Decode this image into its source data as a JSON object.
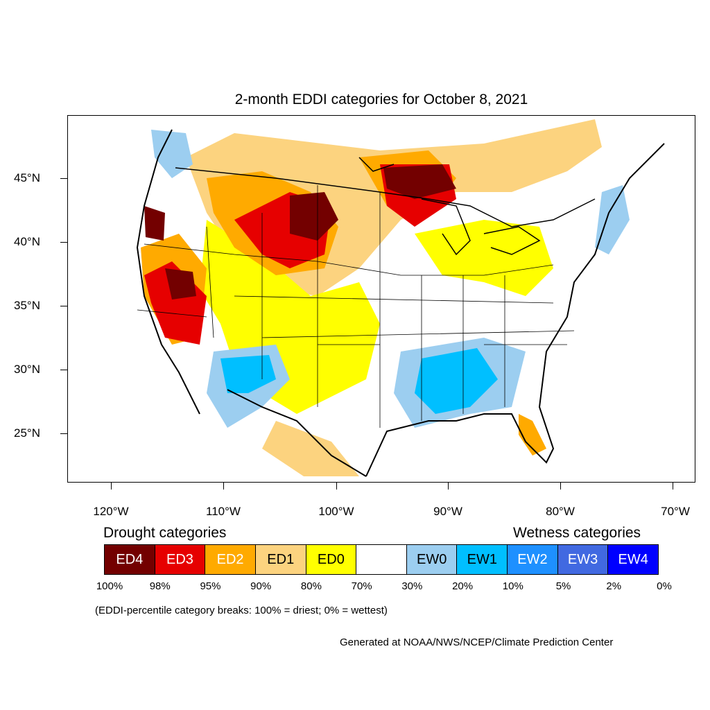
{
  "title": "2-month EDDI categories for October 8, 2021",
  "lat_labels": [
    "45°N",
    "40°N",
    "35°N",
    "30°N",
    "25°N"
  ],
  "lon_labels": [
    "120°W",
    "110°W",
    "100°W",
    "90°W",
    "80°W",
    "70°W"
  ],
  "legend": {
    "drought_heading": "Drought categories",
    "wetness_heading": "Wetness categories",
    "categories": [
      {
        "label": "ED4",
        "color": "#730000",
        "text_color": "#ffffff"
      },
      {
        "label": "ED3",
        "color": "#e60000",
        "text_color": "#ffffff"
      },
      {
        "label": "ED2",
        "color": "#ffaa00",
        "text_color": "#ffffff"
      },
      {
        "label": "ED1",
        "color": "#fcd37f",
        "text_color": "#000000"
      },
      {
        "label": "ED0",
        "color": "#ffff00",
        "text_color": "#000000"
      },
      {
        "label": "",
        "color": "#ffffff",
        "text_color": "#000000"
      },
      {
        "label": "EW0",
        "color": "#9ccef0",
        "text_color": "#000000"
      },
      {
        "label": "EW1",
        "color": "#00bfff",
        "text_color": "#000000"
      },
      {
        "label": "EW2",
        "color": "#1e90ff",
        "text_color": "#ffffff"
      },
      {
        "label": "EW3",
        "color": "#4169e1",
        "text_color": "#ffffff"
      },
      {
        "label": "EW4",
        "color": "#0000ff",
        "text_color": "#ffffff"
      }
    ],
    "breaks": [
      "100%",
      "98%",
      "95%",
      "90%",
      "80%",
      "70%",
      "30%",
      "20%",
      "10%",
      "5%",
      "2%",
      "0%"
    ]
  },
  "note": "(EDDI-percentile category breaks: 100% = driest; 0% = wettest)",
  "credit": "Generated at NOAA/NWS/NCEP/Climate Prediction Center"
}
